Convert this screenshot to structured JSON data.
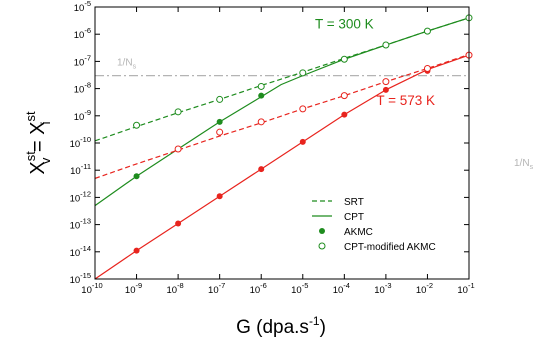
{
  "chart_data": {
    "type": "line",
    "x_scale": "log",
    "y_scale": "log",
    "xlim": [
      1e-10,
      0.1
    ],
    "ylim": [
      1e-15,
      1e-05
    ],
    "xlabel": {
      "base": "G (dpa.s",
      "sup": "-1",
      "tail": ")"
    },
    "ylabel": {
      "a": "X",
      "a_sup": "st",
      "a_sub": "v",
      "eq": " = X",
      "b_sup": "st",
      "b_sub": "i"
    },
    "x_ticks": [
      {
        "v": 1e-10,
        "base": "10",
        "exp": "-10"
      },
      {
        "v": 1e-09,
        "base": "10",
        "exp": "-9"
      },
      {
        "v": 1e-08,
        "base": "10",
        "exp": "-8"
      },
      {
        "v": 1e-07,
        "base": "10",
        "exp": "-7"
      },
      {
        "v": 1e-06,
        "base": "10",
        "exp": "-6"
      },
      {
        "v": 1e-05,
        "base": "10",
        "exp": "-5"
      },
      {
        "v": 0.0001,
        "base": "10",
        "exp": "-4"
      },
      {
        "v": 0.001,
        "base": "10",
        "exp": "-3"
      },
      {
        "v": 0.01,
        "base": "10",
        "exp": "-2"
      },
      {
        "v": 0.1,
        "base": "10",
        "exp": "-1"
      }
    ],
    "y_ticks": [
      {
        "v": 1e-15,
        "base": "10",
        "exp": "-15"
      },
      {
        "v": 1e-14,
        "base": "10",
        "exp": "-14"
      },
      {
        "v": 1e-13,
        "base": "10",
        "exp": "-13"
      },
      {
        "v": 1e-12,
        "base": "10",
        "exp": "-12"
      },
      {
        "v": 1e-11,
        "base": "10",
        "exp": "-11"
      },
      {
        "v": 1e-10,
        "base": "10",
        "exp": "-10"
      },
      {
        "v": 1e-09,
        "base": "10",
        "exp": "-9"
      },
      {
        "v": 1e-08,
        "base": "10",
        "exp": "-8"
      },
      {
        "v": 1e-07,
        "base": "10",
        "exp": "-7"
      },
      {
        "v": 1e-06,
        "base": "10",
        "exp": "-6"
      },
      {
        "v": 1e-05,
        "base": "10",
        "exp": "-5"
      }
    ],
    "reference_line": {
      "label_base": "1/N",
      "label_sub": "s",
      "y": 3e-08,
      "color": "#b4b4b4"
    },
    "outer_label": {
      "base": "1/N",
      "sub": "s",
      "color": "#b4b4b4"
    },
    "annotations": [
      {
        "text": "T = 300 K",
        "x": 0.0001,
        "y": 1.6e-06,
        "color": "#1e8c1e"
      },
      {
        "text": "T = 573 K",
        "x": 0.003,
        "y": 2.5e-09,
        "color": "#e8241e"
      }
    ],
    "series": [
      {
        "key": "srt300",
        "style": "dashed",
        "color": "#1e8c1e",
        "x": [
          1e-10,
          1e-09,
          1e-08,
          1e-07,
          1e-06,
          1e-05,
          0.0001,
          0.001,
          0.01,
          0.1
        ],
        "y": [
          1.2e-10,
          4e-10,
          1.3e-09,
          4e-09,
          1.3e-08,
          4e-08,
          1.3e-07,
          4e-07,
          1.3e-06,
          4e-06
        ]
      },
      {
        "key": "cpt300",
        "style": "solid",
        "color": "#1e8c1e",
        "x": [
          1e-10,
          1e-09,
          1e-08,
          1e-07,
          1e-06,
          3e-06,
          1e-05,
          0.0001,
          0.001,
          0.01,
          0.1
        ],
        "y": [
          5e-13,
          6e-12,
          6e-11,
          6e-10,
          5e-09,
          1.4e-08,
          3e-08,
          1.2e-07,
          4e-07,
          1.3e-06,
          4e-06
        ]
      },
      {
        "key": "akmc300",
        "style": "filled",
        "color": "#1e8c1e",
        "x": [
          1e-09,
          1e-07,
          1e-06
        ],
        "y": [
          6e-12,
          6e-10,
          5.5e-09
        ]
      },
      {
        "key": "cptmod300",
        "style": "open",
        "color": "#1e8c1e",
        "x": [
          1e-09,
          1e-08,
          1e-07,
          1e-06,
          1e-05,
          0.0001,
          0.001,
          0.01,
          0.1
        ],
        "y": [
          4.5e-10,
          1.4e-09,
          4e-09,
          1.2e-08,
          3.8e-08,
          1.2e-07,
          4e-07,
          1.3e-06,
          4e-06
        ]
      },
      {
        "key": "srt573",
        "style": "dashed",
        "color": "#e8241e",
        "x": [
          1e-10,
          1e-09,
          1e-08,
          1e-07,
          1e-06,
          1e-05,
          0.0001,
          0.001,
          0.01,
          0.1
        ],
        "y": [
          5e-12,
          1.7e-11,
          5.5e-11,
          1.8e-10,
          5.5e-10,
          1.8e-09,
          5.5e-09,
          1.8e-08,
          5.5e-08,
          1.8e-07
        ]
      },
      {
        "key": "cpt573",
        "style": "solid",
        "color": "#e8241e",
        "x": [
          1e-10,
          1e-09,
          1e-08,
          1e-07,
          1e-06,
          1e-05,
          0.0001,
          0.001,
          0.01,
          0.1
        ],
        "y": [
          1e-15,
          1.1e-14,
          1.1e-13,
          1.1e-12,
          1.1e-11,
          1.1e-10,
          1.1e-09,
          9e-09,
          5e-08,
          1.7e-07
        ]
      },
      {
        "key": "akmc573",
        "style": "filled",
        "color": "#e8241e",
        "x": [
          1e-09,
          1e-08,
          1e-07,
          1e-06,
          1e-05,
          0.0001,
          0.001,
          0.01
        ],
        "y": [
          1.1e-14,
          1.1e-13,
          1.1e-12,
          1.1e-11,
          1.1e-10,
          1.1e-09,
          9e-09,
          4.5e-08
        ]
      },
      {
        "key": "cptmod573",
        "style": "open",
        "color": "#e8241e",
        "x": [
          1e-08,
          1e-07,
          1e-06,
          1e-05,
          0.0001,
          0.001,
          0.01,
          0.1
        ],
        "y": [
          6e-11,
          2.5e-10,
          6e-10,
          1.8e-09,
          5.5e-09,
          1.8e-08,
          5.5e-08,
          1.7e-07
        ]
      }
    ],
    "legend": {
      "placement": "bottom-right",
      "entries": [
        {
          "label": "SRT",
          "style": "dashed",
          "color": "#1e8c1e"
        },
        {
          "label": "CPT",
          "style": "solid",
          "color": "#1e8c1e"
        },
        {
          "label": "AKMC",
          "style": "filled",
          "color": "#1e8c1e"
        },
        {
          "label": "CPT-modified AKMC",
          "style": "open",
          "color": "#1e8c1e"
        }
      ]
    }
  }
}
